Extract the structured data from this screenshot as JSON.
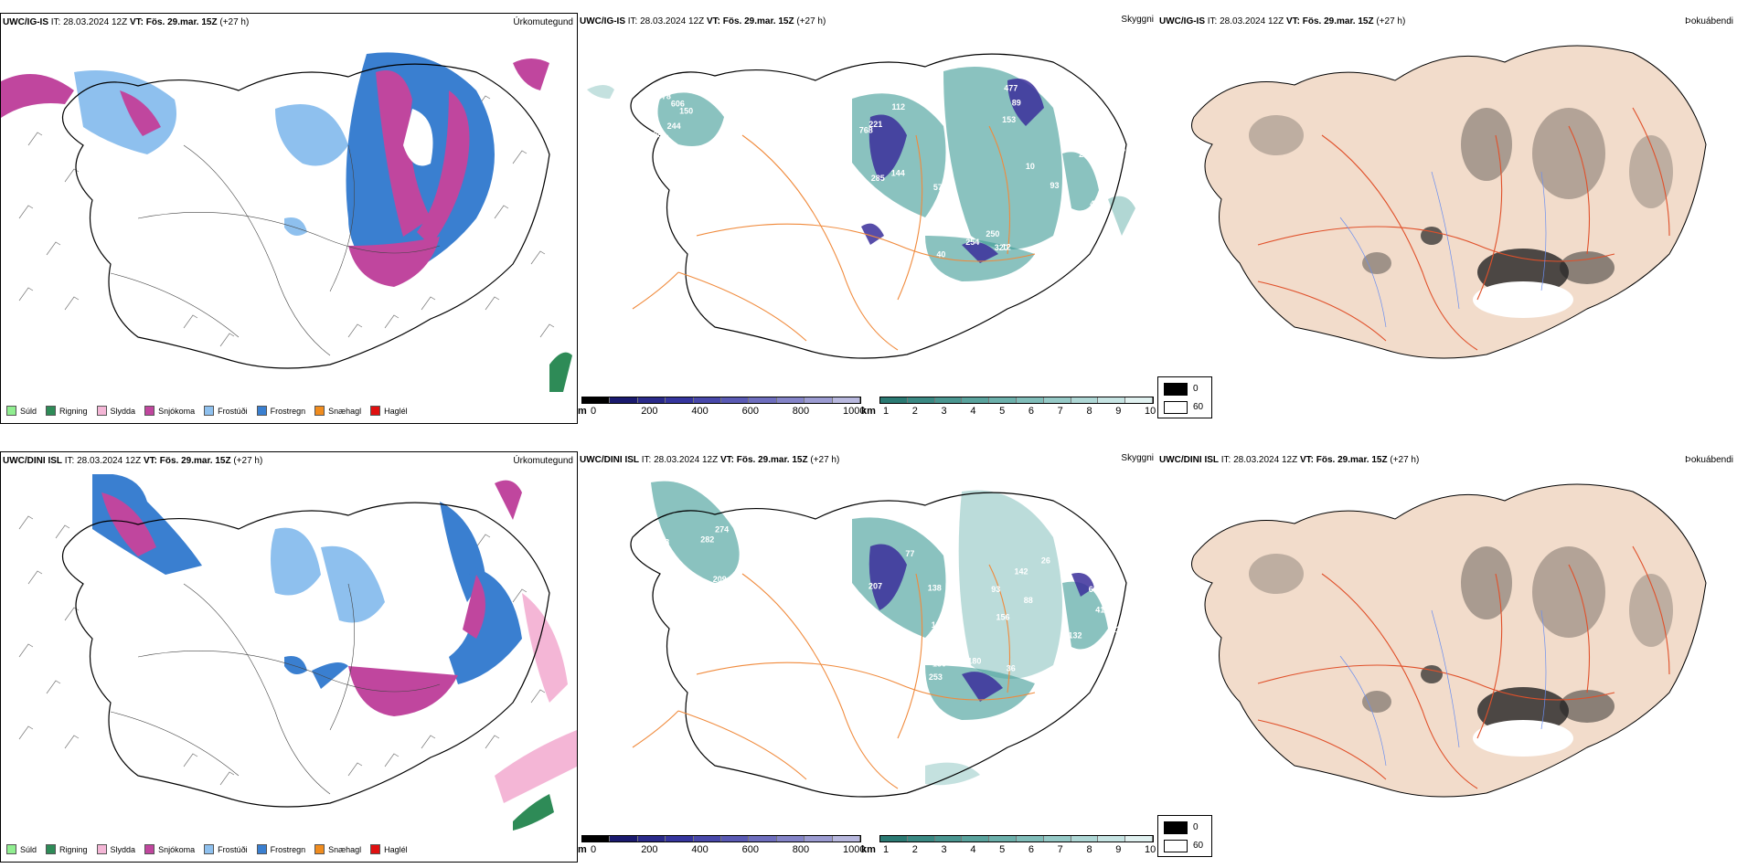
{
  "rows": [
    {
      "model": "UWC/IG-IS",
      "it_label": "IT:",
      "it_value": "28.03.2024 12Z",
      "vt_label": "VT:",
      "vt_value": "Fös. 29.mar. 15Z",
      "lead": "(+27 h)"
    },
    {
      "model": "UWC/DINI ISL",
      "it_label": "IT:",
      "it_value": "28.03.2024 12Z",
      "vt_label": "VT:",
      "vt_value": "Fös. 29.mar. 15Z",
      "lead": "(+27 h)"
    }
  ],
  "panel_titles": {
    "precip_type": "Úrkomutegund",
    "visibility": "Skyggni",
    "cloud": "Þokuábendi"
  },
  "precip_legend": [
    {
      "label": "Súld",
      "color": "#90ee90"
    },
    {
      "label": "Rigning",
      "color": "#2e8b57"
    },
    {
      "label": "Slydda",
      "color": "#f4b6d6"
    },
    {
      "label": "Snjókoma",
      "color": "#c0469e"
    },
    {
      "label": "Frostúði",
      "color": "#8ec0ee"
    },
    {
      "label": "Frostregn",
      "color": "#3a7fd0"
    },
    {
      "label": "Snæhagl",
      "color": "#f08c1e"
    },
    {
      "label": "Haglél",
      "color": "#e01010"
    }
  ],
  "colors": {
    "snow": "#c0469e",
    "freezing_drizzle": "#8ec0ee",
    "freezing_rain": "#3a7fd0",
    "sleet": "#f4b6d6",
    "rain": "#2e8b57",
    "teal": "#3c9a94",
    "purple": "#3a2e9a",
    "roads": "#f08a3c",
    "land_cloud": "#f2dccb",
    "road_red": "#e0502a"
  },
  "vis_scale_m": {
    "unit": "m",
    "labels": [
      "0",
      "200",
      "400",
      "600",
      "800",
      "1000"
    ],
    "colors": [
      "#000000",
      "#1a1a6e",
      "#2a2a8a",
      "#35359e",
      "#4848aa",
      "#5a5ab4",
      "#6e6ebe",
      "#8484c8",
      "#9c9cd2",
      "#b8b8de"
    ]
  },
  "vis_scale_km": {
    "unit": "km",
    "labels": [
      "1",
      "2",
      "3",
      "4",
      "5",
      "6",
      "7",
      "8",
      "9",
      "10"
    ],
    "colors": [
      "#2b7a73",
      "#3a8983",
      "#4a9690",
      "#5aa39d",
      "#6cb0ab",
      "#80bdb9",
      "#96cac7",
      "#aed7d5",
      "#c6e4e3",
      "#e0f1f0"
    ]
  },
  "cloud_legend": {
    "black": "0",
    "white": "60"
  },
  "vis_labels_row1": [
    "219",
    "768",
    "220",
    "254",
    "393",
    "52",
    "112",
    "89",
    "40",
    "208",
    "89",
    "285",
    "477",
    "250",
    "819",
    "378",
    "148",
    "181",
    "320",
    "147",
    "150",
    "144",
    "153",
    "139",
    "23",
    "244",
    "57",
    "93",
    "12",
    "42",
    "606",
    "221",
    "10"
  ],
  "vis_labels_row2": [
    "209",
    "207",
    "88",
    "130",
    "114",
    "48",
    "395",
    "93",
    "36",
    "604",
    "282",
    "190",
    "156",
    "180",
    "413",
    "148",
    "138",
    "142",
    "253",
    "132",
    "274",
    "77",
    "26",
    "10"
  ]
}
